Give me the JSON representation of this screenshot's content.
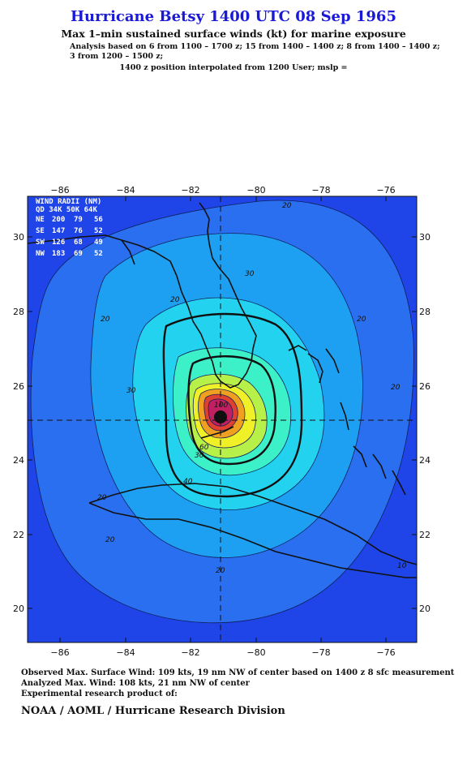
{
  "header": {
    "title": "Hurricane Betsy 1400 UTC 08 Sep 1965",
    "subtitle": "Max 1–min sustained surface winds (kt) for marine exposure",
    "analysis_line1": "Analysis based on  6 from 1100 – 1700 z;  15 from 1400 – 1400 z;  8 from 1400 – 1400 z;",
    "analysis_line2": "3 from 1200 – 1500 z;",
    "interp_line": "1400 z position interpolated from 1200 User; mslp ="
  },
  "map": {
    "lon_ticks": [
      "−86",
      "−84",
      "−82",
      "−80",
      "−78",
      "−76"
    ],
    "lat_ticks": [
      "30",
      "28",
      "26",
      "24",
      "22",
      "20"
    ],
    "center": {
      "lon": -81.0,
      "lat": 25.1
    },
    "wind_radii": {
      "title": "WIND RADII (NM)",
      "header": "QD 34K 50K 64K",
      "rows": [
        {
          "qd": "NE",
          "k34": "200",
          "k50": "79",
          "k64": "56"
        },
        {
          "qd": "SE",
          "k34": "147",
          "k50": "76",
          "k64": "52"
        },
        {
          "qd": "SW",
          "k34": "126",
          "k50": "68",
          "k64": "49"
        },
        {
          "qd": "NW",
          "k34": "183",
          "k50": "69",
          "k64": "52"
        }
      ]
    },
    "contour_labels": [
      "20",
      "30",
      "20",
      "30",
      "20",
      "40",
      "20",
      "20",
      "30",
      "60",
      "20",
      "100",
      "10",
      "20",
      "20"
    ],
    "colors": {
      "outer": "#1f44e8",
      "ring20": "#2a6ff0",
      "ring30": "#1ea0f2",
      "ring40": "#22d2ee",
      "ring50": "#3cf0c8",
      "ring60": "#b8f04a",
      "ring70": "#f0f028",
      "ring80": "#f0a020",
      "ring90": "#e04030",
      "ring100": "#c02060",
      "core": "#a01090"
    }
  },
  "footer": {
    "line1": "Observed Max. Surface Wind: 109 kts, 19 nm NW of center based on 1400 z 8 sfc measurement",
    "line2": "Analyzed Max. Wind: 108 kts, 21 nm NW of center",
    "line3": "Experimental research product of:",
    "org": "NOAA / AOML / Hurricane Research Division"
  }
}
